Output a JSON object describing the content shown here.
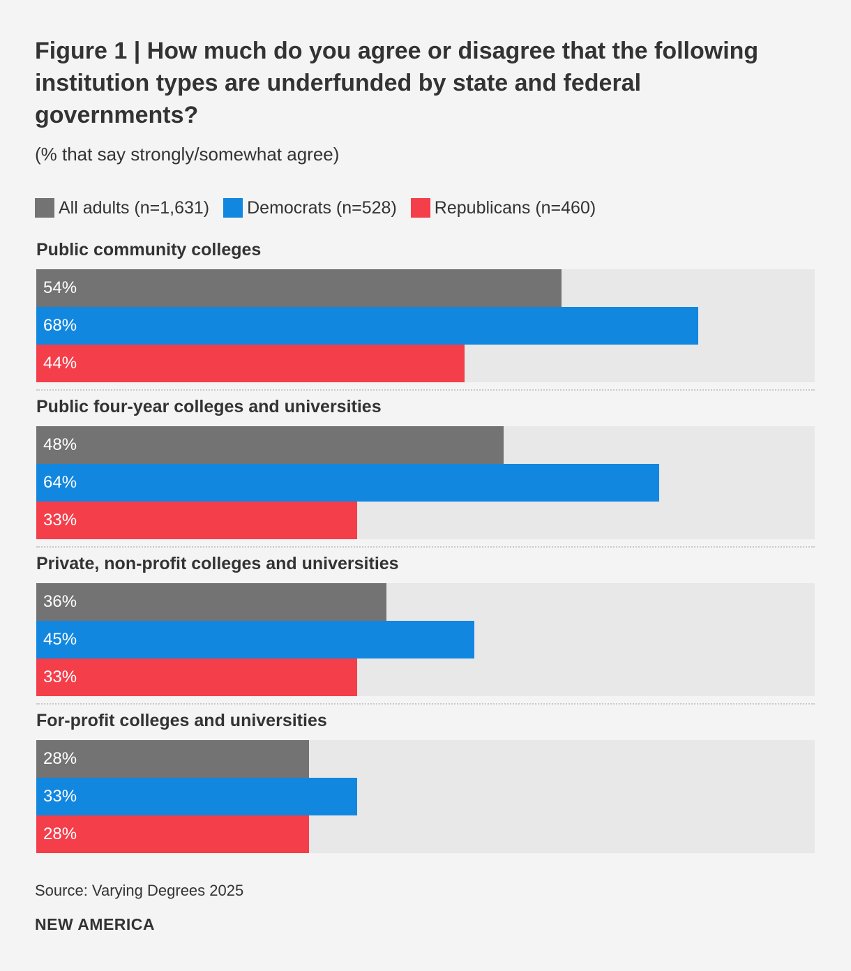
{
  "chart_data": {
    "type": "bar",
    "orientation": "horizontal",
    "title": "Figure 1 | How much do you agree or disagree that the following institution types are underfunded by state and federal governments?",
    "subtitle": "(% that say strongly/somewhat agree)",
    "categories": [
      "Public community colleges",
      "Public four-year colleges and universities",
      "Private, non-profit colleges and universities",
      "For-profit colleges and universities"
    ],
    "series": [
      {
        "name": "All adults (n=1,631)",
        "color": "#737373",
        "values": [
          54,
          48,
          36,
          28
        ],
        "labels": [
          "54%",
          "48%",
          "36%",
          "28%"
        ]
      },
      {
        "name": "Democrats (n=528)",
        "color": "#1187e0",
        "values": [
          68,
          64,
          45,
          33
        ],
        "labels": [
          "68%",
          "64%",
          "45%",
          "33%"
        ]
      },
      {
        "name": "Republicans (n=460)",
        "color": "#f43e4a",
        "values": [
          44,
          33,
          33,
          28
        ],
        "labels": [
          "44%",
          "33%",
          "33%",
          "28%"
        ]
      }
    ],
    "xlim": [
      0,
      80
    ],
    "track_color": "#e8e8e8",
    "grid": false,
    "legend_position": "top-left"
  },
  "source": "Source: Varying Degrees 2025",
  "brand": "NEW AMERICA"
}
